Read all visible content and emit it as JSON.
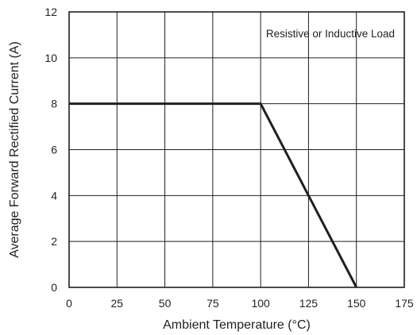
{
  "chart_data": {
    "type": "line",
    "xlabel": "Ambient Temperature (°C)",
    "ylabel": "Average Forward Rectified Current (A)",
    "xlim": [
      0,
      175
    ],
    "ylim": [
      0,
      12
    ],
    "x_ticks": [
      0,
      25,
      50,
      75,
      100,
      125,
      150,
      175
    ],
    "y_ticks": [
      0,
      2,
      4,
      6,
      8,
      10,
      12
    ],
    "grid": true,
    "legend": "none",
    "annotation": "Resistive or Inductive Load",
    "series": [
      {
        "x": [
          0,
          100,
          150
        ],
        "y": [
          8,
          8,
          0
        ],
        "color": "#231f20"
      }
    ]
  }
}
